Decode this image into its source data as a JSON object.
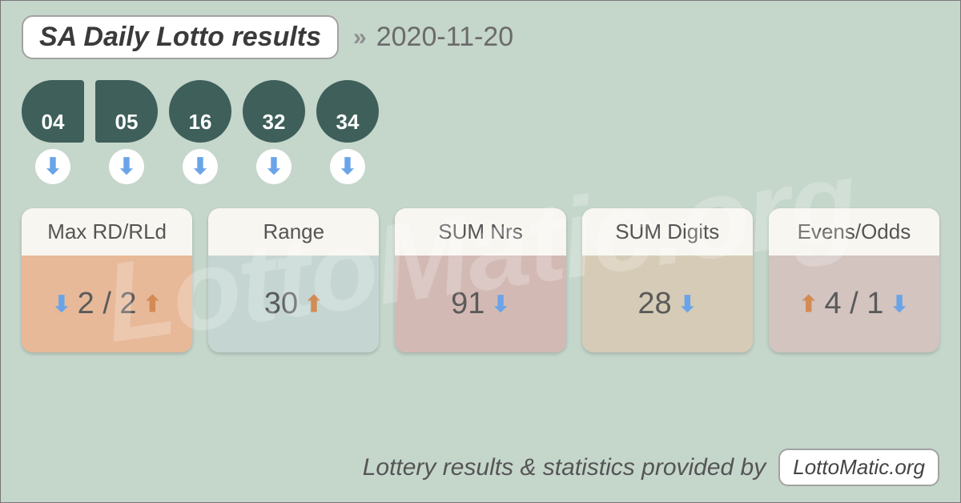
{
  "colors": {
    "page_bg": "#c5d6cb",
    "ball_bg": "#3e5f5a",
    "ball_text": "#ffffff",
    "arrow_down": "#6aa4e8",
    "arrow_up": "#d48a54",
    "stat_head_bg": "#f8f6f1",
    "pill_bg": "#ffffff",
    "pill_border": "#a2a2a2",
    "text_muted": "#6b6b6b"
  },
  "watermark": "LottoMatic.org",
  "header": {
    "title": "SA Daily Lotto results",
    "date": "2020-11-20"
  },
  "balls": [
    {
      "value": "04",
      "trend": "down",
      "shape": "first"
    },
    {
      "value": "05",
      "trend": "down",
      "shape": "second"
    },
    {
      "value": "16",
      "trend": "down",
      "shape": "round"
    },
    {
      "value": "32",
      "trend": "down",
      "shape": "round"
    },
    {
      "value": "34",
      "trend": "down",
      "shape": "round"
    }
  ],
  "stats": [
    {
      "label": "Max RD/RLd",
      "body_bg": "#e7b999",
      "parts": [
        {
          "arrow": "down"
        },
        {
          "text": "2 / 2"
        },
        {
          "arrow": "up"
        }
      ]
    },
    {
      "label": "Range",
      "body_bg": "#c5d6d2",
      "parts": [
        {
          "text": "30"
        },
        {
          "arrow": "up"
        }
      ]
    },
    {
      "label": "SUM Nrs",
      "body_bg": "#d3b9b4",
      "parts": [
        {
          "text": "91"
        },
        {
          "arrow": "down"
        }
      ]
    },
    {
      "label": "SUM Digits",
      "body_bg": "#d6cbb6",
      "parts": [
        {
          "text": "28"
        },
        {
          "arrow": "down"
        }
      ]
    },
    {
      "label": "Evens/Odds",
      "body_bg": "#d3c4c0",
      "parts": [
        {
          "arrow": "up"
        },
        {
          "text": "4 / 1"
        },
        {
          "arrow": "down"
        }
      ]
    }
  ],
  "footer": {
    "text": "Lottery results & statistics provided by",
    "brand": "LottoMatic.org"
  },
  "typography": {
    "title_fontsize": 34,
    "date_fontsize": 34,
    "ball_fontsize": 26,
    "stat_label_fontsize": 26,
    "stat_value_fontsize": 38,
    "footer_fontsize": 30
  }
}
